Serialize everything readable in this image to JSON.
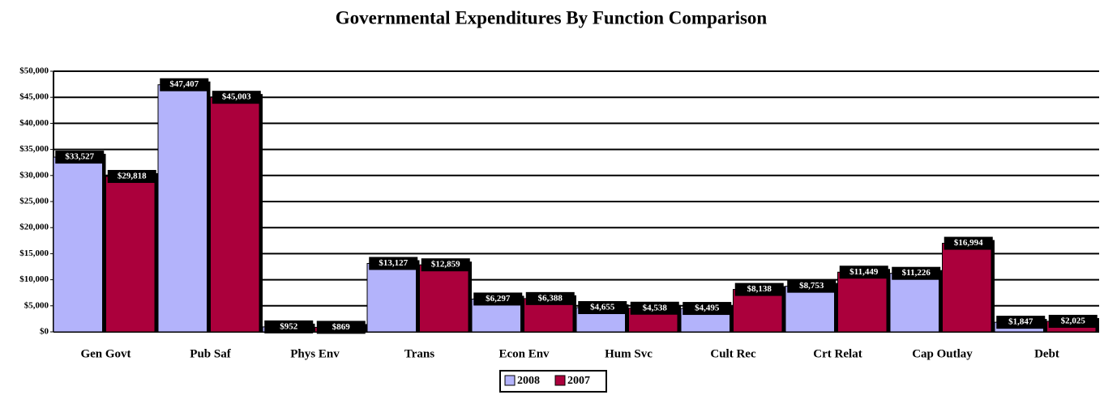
{
  "chart_data": {
    "type": "bar",
    "title": "Governmental Expenditures By Function Comparison",
    "categories": [
      "Gen Govt",
      "Pub Saf",
      "Phys Env",
      "Trans",
      "Econ Env",
      "Hum Svc",
      "Cult Rec",
      "Crt Relat",
      "Cap Outlay",
      "Debt"
    ],
    "series": [
      {
        "name": "2008",
        "color": "#b3b3fb",
        "values": [
          33527,
          47407,
          952,
          13127,
          6297,
          4655,
          4495,
          8753,
          11226,
          1847
        ],
        "value_labels": [
          "$33,527",
          "$47,407",
          "$952",
          "$13,127",
          "$6,297",
          "$4,655",
          "$4,495",
          "$8,753",
          "$11,226",
          "$1,847"
        ]
      },
      {
        "name": "2007",
        "color": "#ab003c",
        "values": [
          29818,
          45003,
          869,
          12859,
          6388,
          4538,
          8138,
          11449,
          16994,
          2025
        ],
        "value_labels": [
          "$29,818",
          "$45,003",
          "$869",
          "$12,859",
          "$6,388",
          "$4,538",
          "$8,138",
          "$11,449",
          "$16,994",
          "$2,025"
        ]
      }
    ],
    "ylim": [
      0,
      50000
    ],
    "yticks": [
      {
        "value": 0,
        "label": "$0"
      },
      {
        "value": 5000,
        "label": "$5,000"
      },
      {
        "value": 10000,
        "label": "$10,000"
      },
      {
        "value": 15000,
        "label": "$15,000"
      },
      {
        "value": 20000,
        "label": "$20,000"
      },
      {
        "value": 25000,
        "label": "$25,000"
      },
      {
        "value": 30000,
        "label": "$30,000"
      },
      {
        "value": 35000,
        "label": "$35,000"
      },
      {
        "value": 40000,
        "label": "$40,000"
      },
      {
        "value": 45000,
        "label": "$45,000"
      },
      {
        "value": 50000,
        "label": "$50,000"
      }
    ],
    "grid": true,
    "legend": "bottom"
  }
}
